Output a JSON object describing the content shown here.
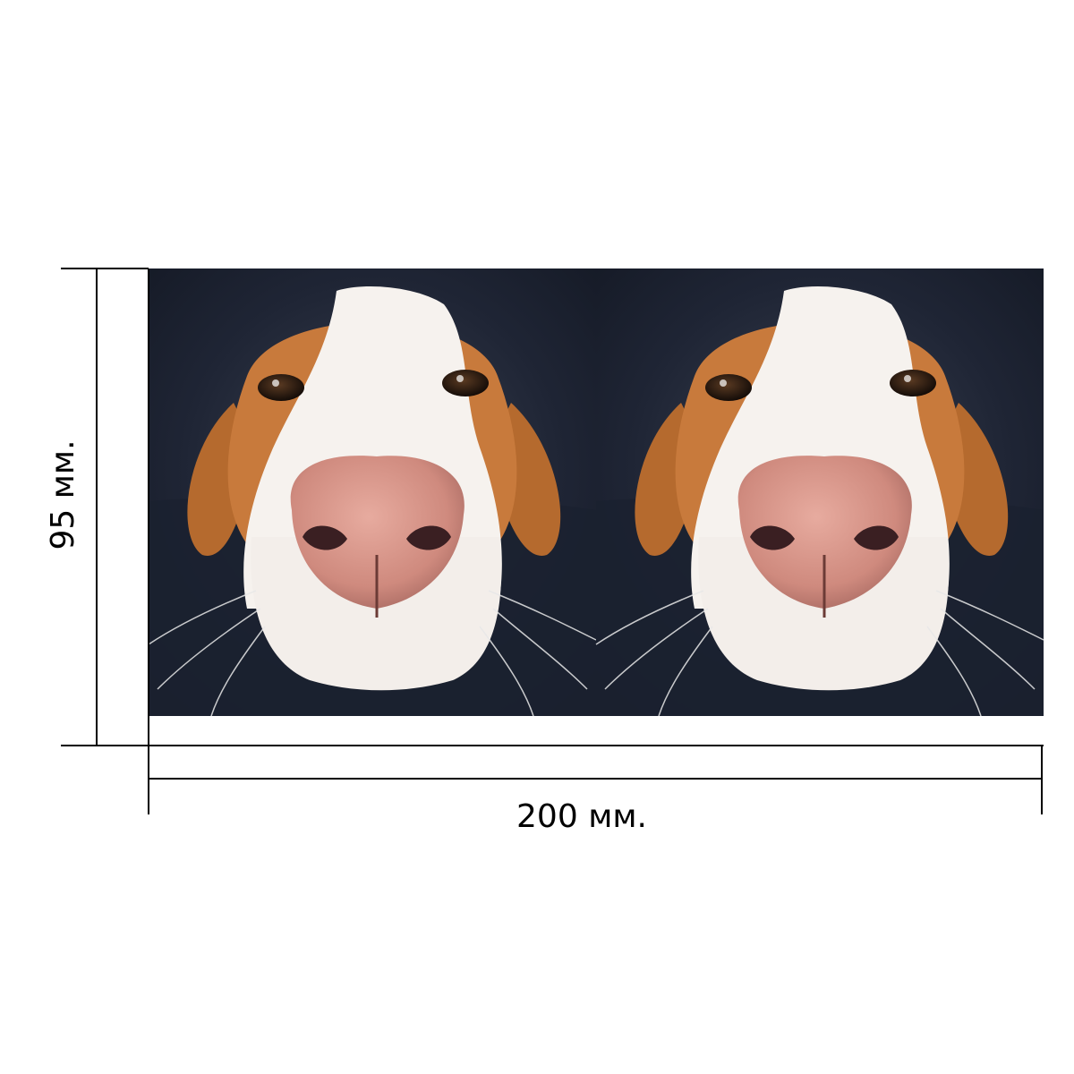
{
  "dimensions": {
    "height_label": "95 мм.",
    "width_label": "200 мм."
  },
  "photo": {
    "subject": "dog-face-closeup",
    "panel_count": 2
  },
  "colors": {
    "line": "#000000",
    "background_dark": "#1e2434",
    "fur_orange": "#c87a3c",
    "fur_white": "#f6f2ee",
    "nose_pink": "#d9978a",
    "nostril": "#3a1f22",
    "eye": "#2a1a12"
  }
}
